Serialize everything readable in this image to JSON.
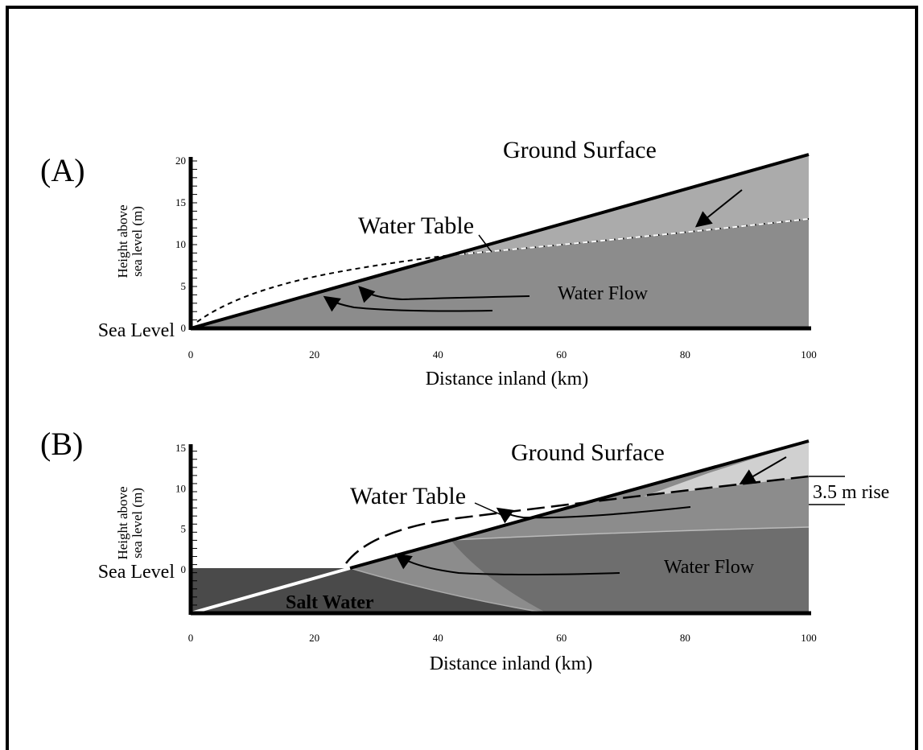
{
  "panels": [
    {
      "label": "(A)",
      "ground": "Ground Surface",
      "water_table": "Water Table",
      "flow": "Water Flow",
      "sea_level": "Sea Level",
      "y_label": [
        "Height above",
        "sea level (m)"
      ],
      "x_label": "Distance inland (km)",
      "x_ticks": [
        "0",
        "20",
        "40",
        "60",
        "80",
        "100"
      ],
      "y_ticks": [
        "0",
        "5",
        "10",
        "15",
        "20"
      ]
    },
    {
      "label": "(B)",
      "ground": "Ground Surface",
      "water_table": "Water Table",
      "flow": "Water Flow",
      "sea_level": "Sea Level",
      "y_label": [
        "Height above",
        "sea level (m)"
      ],
      "x_label": "Distance inland (km)",
      "x_ticks": [
        "0",
        "20",
        "40",
        "60",
        "80",
        "100"
      ],
      "y_ticks": [
        "0",
        "5",
        "10",
        "15"
      ],
      "salt": "Salt Water",
      "rise": "3.5 m rise"
    }
  ]
}
